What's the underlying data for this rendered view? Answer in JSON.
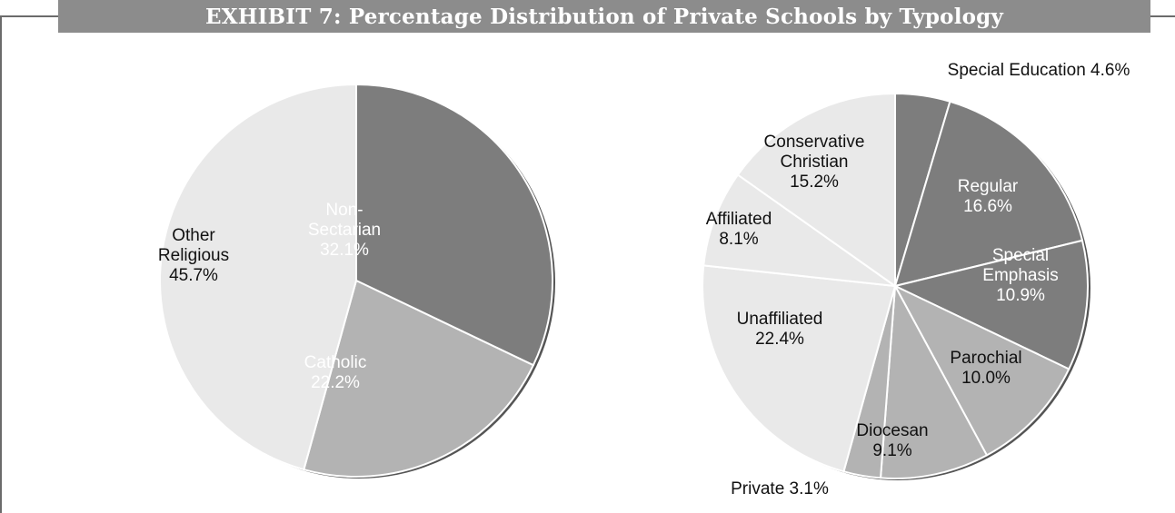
{
  "title": "EXHIBIT 7: Percentage Distribution of Private Schools by Typology",
  "chart_data": [
    {
      "type": "pie",
      "slices": [
        {
          "label": [
            "Non-",
            "Sectarian",
            "32.1%"
          ],
          "value": 32.1,
          "color": "#7d7d7d",
          "text_color": "#ffffff"
        },
        {
          "label": [
            "Catholic",
            "22.2%"
          ],
          "value": 22.2,
          "color": "#b3b3b3",
          "text_color": "#ffffff"
        },
        {
          "label": [
            "Other",
            "Religious",
            "45.7%"
          ],
          "value": 45.7,
          "color": "#e9e9e9",
          "text_color": "#111111"
        }
      ]
    },
    {
      "type": "pie",
      "slices": [
        {
          "label": [
            "Special Education 4.6%"
          ],
          "value": 4.6,
          "color": "#7d7d7d",
          "text_color": "#111111",
          "outside": true
        },
        {
          "label": [
            "Regular",
            "16.6%"
          ],
          "value": 16.6,
          "color": "#7d7d7d",
          "text_color": "#ffffff"
        },
        {
          "label": [
            "Special",
            "Emphasis",
            "10.9%"
          ],
          "value": 10.9,
          "color": "#7d7d7d",
          "text_color": "#ffffff"
        },
        {
          "label": [
            "Parochial",
            "10.0%"
          ],
          "value": 10.0,
          "color": "#b3b3b3",
          "text_color": "#111111"
        },
        {
          "label": [
            "Diocesan",
            "9.1%"
          ],
          "value": 9.1,
          "color": "#b3b3b3",
          "text_color": "#111111"
        },
        {
          "label": [
            "Private 3.1%"
          ],
          "value": 3.1,
          "color": "#b3b3b3",
          "text_color": "#111111",
          "outside": true
        },
        {
          "label": [
            "Unaffiliated",
            "22.4%"
          ],
          "value": 22.4,
          "color": "#e9e9e9",
          "text_color": "#111111"
        },
        {
          "label": [
            "Affiliated",
            "8.1%"
          ],
          "value": 8.1,
          "color": "#e9e9e9",
          "text_color": "#111111"
        },
        {
          "label": [
            "Conservative",
            "Christian",
            "15.2%"
          ],
          "value": 15.2,
          "color": "#e9e9e9",
          "text_color": "#111111"
        }
      ]
    }
  ]
}
